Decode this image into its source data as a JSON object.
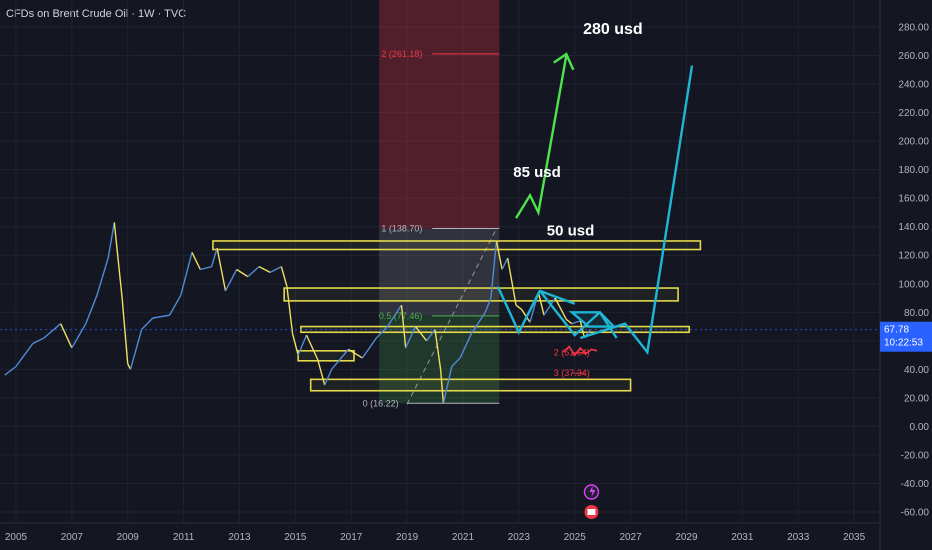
{
  "header": {
    "title": "CFDs on Brent Crude Oil · 1W · TVC"
  },
  "chart_data": {
    "type": "line",
    "title": "CFDs on Brent Crude Oil · 1W · TVC",
    "x_tick_labels": [
      "2005",
      "2007",
      "2009",
      "2011",
      "2013",
      "2015",
      "2017",
      "2019",
      "2021",
      "2023",
      "2025",
      "2027",
      "2029",
      "2031",
      "2033",
      "2035"
    ],
    "y_tick_labels": [
      "280.00",
      "260.00",
      "240.00",
      "220.00",
      "200.00",
      "180.00",
      "160.00",
      "140.00",
      "120.00",
      "100.00",
      "80.00",
      "60.00",
      "40.00",
      "20.00",
      "0.00",
      "-20.00",
      "-40.00",
      "-60.00"
    ],
    "ylim": [
      -60,
      280
    ],
    "xlim": [
      2004.5,
      2036
    ],
    "grid": true,
    "colors": {
      "price_up": "#4f8bd6",
      "price_down": "#f0e060",
      "zones": "#e5d84a",
      "pattern": "#1eb6d6",
      "projection": "#4de34a",
      "fib_red": "#f23645",
      "current_price_bg": "#2962ff"
    },
    "series": [
      {
        "values": [
          [
            2004.6,
            36
          ],
          [
            2005.0,
            42
          ],
          [
            2005.6,
            58
          ],
          [
            2006.0,
            62
          ],
          [
            2006.6,
            72
          ],
          [
            2007.0,
            55
          ],
          [
            2007.5,
            72
          ],
          [
            2007.9,
            92
          ],
          [
            2008.3,
            118
          ],
          [
            2008.52,
            143
          ],
          [
            2008.8,
            90
          ],
          [
            2009.0,
            44
          ],
          [
            2009.1,
            40
          ],
          [
            2009.5,
            68
          ],
          [
            2009.9,
            76
          ],
          [
            2010.5,
            78
          ],
          [
            2010.9,
            92
          ],
          [
            2011.3,
            122
          ],
          [
            2011.6,
            110
          ],
          [
            2012.0,
            112
          ],
          [
            2012.2,
            125
          ],
          [
            2012.5,
            95
          ],
          [
            2012.9,
            110
          ],
          [
            2013.3,
            105
          ],
          [
            2013.7,
            112
          ],
          [
            2014.1,
            108
          ],
          [
            2014.5,
            112
          ],
          [
            2014.7,
            98
          ],
          [
            2014.9,
            65
          ],
          [
            2015.1,
            50
          ],
          [
            2015.4,
            64
          ],
          [
            2015.8,
            47
          ],
          [
            2016.05,
            29
          ],
          [
            2016.3,
            40
          ],
          [
            2016.6,
            47
          ],
          [
            2016.9,
            54
          ],
          [
            2017.4,
            48
          ],
          [
            2017.9,
            62
          ],
          [
            2018.3,
            70
          ],
          [
            2018.8,
            85
          ],
          [
            2018.95,
            55
          ],
          [
            2019.3,
            70
          ],
          [
            2019.7,
            60
          ],
          [
            2020.0,
            68
          ],
          [
            2020.2,
            40
          ],
          [
            2020.3,
            16
          ],
          [
            2020.6,
            42
          ],
          [
            2020.9,
            48
          ],
          [
            2021.3,
            65
          ],
          [
            2021.8,
            80
          ],
          [
            2022.0,
            90
          ],
          [
            2022.2,
            130
          ],
          [
            2022.4,
            110
          ],
          [
            2022.6,
            118
          ],
          [
            2022.9,
            85
          ],
          [
            2023.1,
            82
          ],
          [
            2023.4,
            73
          ],
          [
            2023.7,
            94
          ],
          [
            2023.9,
            78
          ],
          [
            2024.3,
            90
          ],
          [
            2024.7,
            75
          ],
          [
            2024.9,
            72
          ],
          [
            2025.2,
            74
          ],
          [
            2025.35,
            62
          ],
          [
            2025.55,
            67.78
          ]
        ]
      }
    ],
    "zones": [
      [
        2012.05,
        2029.5,
        124,
        130
      ],
      [
        2014.6,
        2028.7,
        88,
        97
      ],
      [
        2015.2,
        2029.1,
        66,
        70
      ],
      [
        2015.1,
        2017.1,
        46,
        53
      ],
      [
        2015.55,
        2027.0,
        25,
        33
      ]
    ],
    "fib_levels": [
      {
        "label": "2 (261.18)",
        "value": 261.18
      },
      {
        "label": "1 (138.70)",
        "value": 138.7
      },
      {
        "label": "0.5 (77.46)",
        "value": 77.46
      },
      {
        "label": "0 (16.22)",
        "value": 16.22
      },
      {
        "label": "2 (51.64)",
        "value": 51.64
      },
      {
        "label": "3 (37.34)",
        "value": 37.34
      }
    ],
    "annotations": [
      {
        "text": "280 usd",
        "x": 2025.3,
        "y": 275
      },
      {
        "text": "85 usd",
        "x": 2022.8,
        "y": 175
      },
      {
        "text": "50 usd",
        "x": 2024.0,
        "y": 134
      }
    ],
    "green_projection": [
      [
        2022.9,
        146
      ],
      [
        2023.4,
        162
      ],
      [
        2023.7,
        150
      ],
      [
        2024.7,
        260
      ],
      [
        2024.4,
        255
      ],
      [
        2024.7,
        261
      ],
      [
        2024.95,
        250
      ]
    ],
    "cyan_projection": [
      [
        2025.2,
        62
      ],
      [
        2026.8,
        72
      ],
      [
        2027.6,
        52
      ],
      [
        2029.2,
        253
      ]
    ],
    "current_price": {
      "value": "67.78",
      "timer": "10:22:53"
    }
  }
}
